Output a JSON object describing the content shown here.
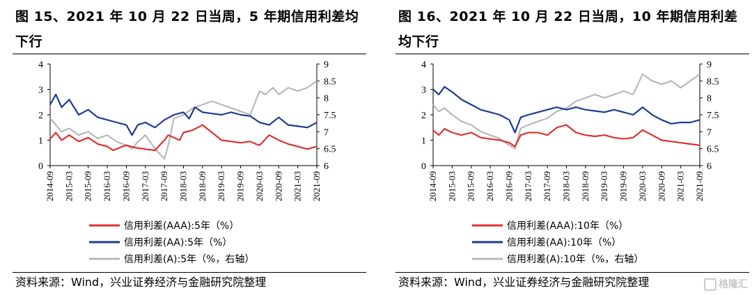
{
  "panels": [
    {
      "title": "图 15、2021 年 10 月 22 日当周，5 年期信用利差均下行",
      "source": "资料来源：Wind，兴业证券经济与金融研究院整理",
      "chart_data": {
        "type": "line",
        "x_ticks": [
          "2014-09",
          "2015-03",
          "2015-09",
          "2016-03",
          "2016-09",
          "2017-03",
          "2017-09",
          "2018-03",
          "2018-09",
          "2019-03",
          "2019-09",
          "2020-03",
          "2020-09",
          "2021-03",
          "2021-09"
        ],
        "y_left": {
          "min": 0,
          "max": 4,
          "ticks": [
            "0",
            "1",
            "2",
            "3",
            "4"
          ]
        },
        "y_right": {
          "min": 6,
          "max": 9,
          "ticks": [
            "6",
            "6.5",
            "7",
            "7.5",
            "8",
            "8.5",
            "9"
          ]
        },
        "grid": false,
        "legend_position": "bottom",
        "series": [
          {
            "name": "信用利差(AAA):5年（%）",
            "axis": "left",
            "color": "#e03030",
            "x": [
              0,
              0.3,
              0.6,
              1,
              1.5,
              2,
              2.5,
              3,
              3.3,
              3.8,
              4,
              4.5,
              5,
              5.5,
              6,
              6.2,
              6.5,
              6.8,
              7,
              7.5,
              8,
              8.5,
              9,
              9.5,
              10,
              10.5,
              10.8,
              11,
              11.5,
              12,
              12.5,
              13,
              13.5,
              14
            ],
            "values": [
              1.05,
              1.3,
              1.0,
              1.2,
              0.95,
              1.1,
              0.85,
              0.75,
              0.6,
              0.75,
              0.8,
              0.7,
              0.65,
              0.6,
              1.0,
              1.2,
              1.1,
              1.0,
              1.3,
              1.4,
              1.6,
              1.3,
              1.0,
              0.95,
              0.9,
              0.95,
              0.85,
              0.8,
              1.2,
              1.0,
              0.85,
              0.75,
              0.65,
              0.75
            ]
          },
          {
            "name": "信用利差(AA):5年（%）",
            "axis": "left",
            "color": "#1f3a93",
            "x": [
              0,
              0.3,
              0.6,
              1,
              1.5,
              2,
              2.5,
              3,
              3.5,
              4,
              4.3,
              4.6,
              5,
              5.5,
              6,
              6.5,
              7,
              7.3,
              7.6,
              8,
              8.5,
              9,
              9.5,
              10,
              10.5,
              11,
              11.5,
              12,
              12.5,
              13,
              13.5,
              14
            ],
            "values": [
              2.4,
              2.8,
              2.3,
              2.6,
              2.0,
              2.2,
              1.9,
              1.8,
              1.7,
              1.6,
              1.2,
              1.6,
              1.7,
              1.5,
              1.8,
              2.0,
              2.1,
              1.85,
              2.3,
              2.1,
              2.05,
              2.0,
              2.1,
              2.0,
              1.95,
              1.7,
              1.6,
              1.9,
              1.6,
              1.55,
              1.5,
              1.7
            ]
          },
          {
            "name": "信用利差(A):5年（%，右轴）",
            "axis": "right",
            "color": "#b8b8b8",
            "x": [
              0,
              0.3,
              0.6,
              1,
              1.5,
              2,
              2.5,
              3,
              3.5,
              4,
              4.3,
              4.6,
              5,
              5.5,
              6,
              6.2,
              6.5,
              7,
              7.5,
              8,
              8.5,
              9,
              9.5,
              10,
              10.5,
              11,
              11.3,
              11.7,
              12,
              12.5,
              13,
              13.5,
              14
            ],
            "values": [
              7.4,
              7.2,
              7.0,
              7.1,
              6.9,
              7.0,
              6.8,
              6.9,
              6.7,
              6.6,
              6.5,
              6.7,
              6.9,
              6.5,
              6.2,
              6.6,
              7.4,
              7.5,
              7.7,
              7.8,
              7.9,
              7.8,
              7.7,
              7.6,
              7.5,
              8.2,
              8.1,
              8.3,
              8.1,
              8.3,
              8.2,
              8.3,
              8.5
            ]
          }
        ]
      }
    },
    {
      "title": "图 16、2021 年 10 月 22 日当周，10 年期信用利差均下行",
      "source": "资料来源：Wind，兴业证券经济与金融研究院整理",
      "chart_data": {
        "type": "line",
        "x_ticks": [
          "2014-09",
          "2015-03",
          "2015-09",
          "2016-03",
          "2016-09",
          "2017-03",
          "2017-09",
          "2018-03",
          "2018-09",
          "2019-03",
          "2019-09",
          "2020-03",
          "2020-09",
          "2021-03",
          "2021-09"
        ],
        "y_left": {
          "min": 0,
          "max": 4,
          "ticks": [
            "0",
            "1",
            "2",
            "3",
            "4"
          ]
        },
        "y_right": {
          "min": 6,
          "max": 9,
          "ticks": [
            "6",
            "6.5",
            "7",
            "7.5",
            "8",
            "8.5",
            "9"
          ]
        },
        "grid": false,
        "legend_position": "bottom",
        "series": [
          {
            "name": "信用利差(AAA):10年（%）",
            "axis": "left",
            "color": "#e03030",
            "x": [
              0,
              0.3,
              0.6,
              1,
              1.5,
              2,
              2.5,
              3,
              3.5,
              4,
              4.3,
              4.6,
              5,
              5.5,
              6,
              6.5,
              7,
              7.5,
              8,
              8.5,
              9,
              9.5,
              10,
              10.5,
              11,
              11.5,
              12,
              12.5,
              13,
              13.5,
              14
            ],
            "values": [
              1.4,
              1.2,
              1.45,
              1.3,
              1.2,
              1.3,
              1.1,
              1.05,
              1.0,
              0.9,
              0.75,
              1.2,
              1.3,
              1.3,
              1.2,
              1.5,
              1.6,
              1.3,
              1.2,
              1.15,
              1.2,
              1.1,
              1.05,
              1.1,
              1.4,
              1.2,
              1.0,
              0.95,
              0.9,
              0.85,
              0.8
            ]
          },
          {
            "name": "信用利差(AA):10年（%）",
            "axis": "left",
            "color": "#1f3a93",
            "x": [
              0,
              0.3,
              0.6,
              1,
              1.5,
              2,
              2.5,
              3,
              3.5,
              4,
              4.3,
              4.6,
              5,
              5.5,
              6,
              6.5,
              7,
              7.5,
              8,
              8.5,
              9,
              9.5,
              10,
              10.5,
              11,
              11.5,
              12,
              12.5,
              13,
              13.5,
              14
            ],
            "values": [
              3.0,
              2.8,
              3.1,
              2.9,
              2.6,
              2.4,
              2.2,
              2.1,
              2.0,
              1.8,
              1.3,
              1.9,
              2.0,
              2.1,
              2.2,
              2.3,
              2.2,
              2.3,
              2.2,
              2.15,
              2.1,
              2.2,
              2.1,
              2.0,
              2.3,
              2.0,
              1.8,
              1.65,
              1.7,
              1.7,
              1.8
            ]
          },
          {
            "name": "信用利差(A):10年（%，右轴）",
            "axis": "right",
            "color": "#b8b8b8",
            "x": [
              0,
              0.3,
              0.6,
              1,
              1.5,
              2,
              2.5,
              3,
              3.5,
              4,
              4.3,
              4.6,
              5,
              5.5,
              6,
              6.5,
              7,
              7.5,
              8,
              8.5,
              9,
              9.5,
              10,
              10.5,
              11,
              11.5,
              12,
              12.5,
              13,
              13.5,
              14
            ],
            "values": [
              7.8,
              7.6,
              7.7,
              7.5,
              7.3,
              7.2,
              7.0,
              6.9,
              6.8,
              6.6,
              6.5,
              7.1,
              7.2,
              7.3,
              7.4,
              7.6,
              7.7,
              7.9,
              8.0,
              8.1,
              8.0,
              8.1,
              8.2,
              8.1,
              8.7,
              8.5,
              8.4,
              8.5,
              8.3,
              8.5,
              8.7
            ]
          }
        ]
      }
    }
  ],
  "watermark": "格隆汇"
}
